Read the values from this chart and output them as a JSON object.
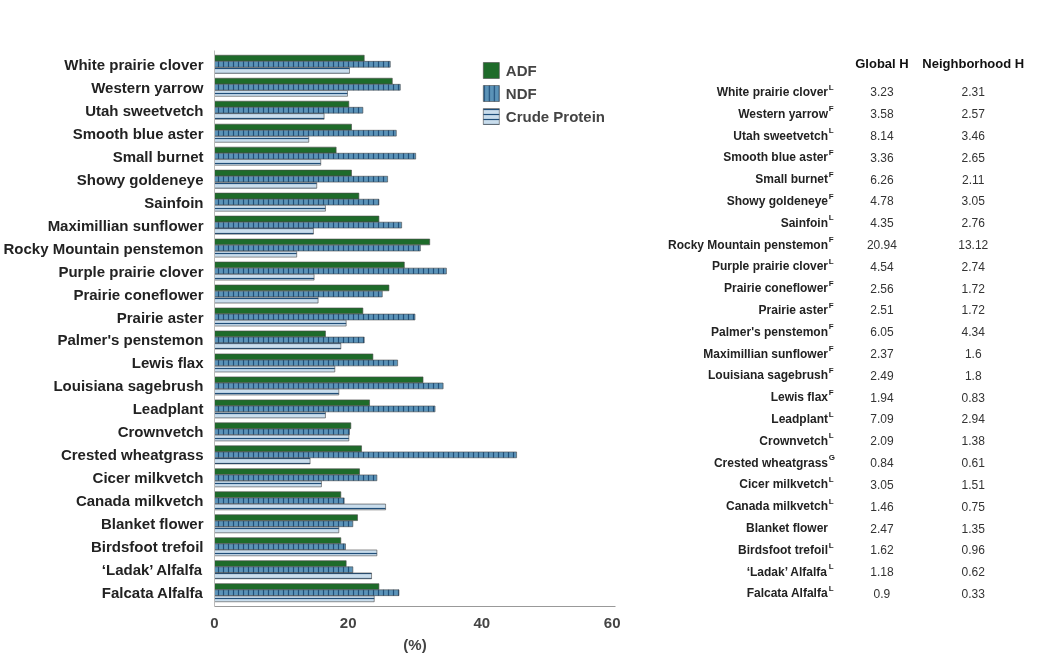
{
  "chart_data": [
    {
      "type": "bar",
      "orientation": "horizontal",
      "xlabel": "(%)",
      "xlim": [
        0,
        60
      ],
      "xticks": [
        0,
        20,
        40,
        60
      ],
      "grid": false,
      "legend": "top right",
      "categories": [
        "White prairie clover",
        "Western yarrow",
        "Utah sweetvetch",
        "Smooth blue aster",
        "Small burnet",
        "Showy goldeneye",
        "Sainfoin",
        "Maximillian sunflower",
        "Rocky Mountain penstemon",
        "Purple prairie clover",
        "Prairie coneflower",
        "Prairie aster",
        "Palmer's penstemon",
        "Lewis flax",
        "Louisiana sagebrush",
        "Leadplant",
        "Crownvetch",
        "Crested wheatgrass",
        "Cicer milkvetch",
        "Canada milkvetch",
        "Blanket flower",
        "Birdsfoot trefoil",
        "‘Ladak’ Alfalfa",
        "Falcata Alfalfa"
      ],
      "series": [
        {
          "name": "ADF",
          "color": "#1e6b2a",
          "values": [
            22.4,
            26.6,
            20.1,
            20.5,
            18.2,
            20.5,
            21.6,
            24.6,
            32.2,
            28.4,
            26.1,
            22.2,
            16.6,
            23.7,
            31.2,
            23.2,
            20.4,
            22.0,
            21.7,
            18.9,
            21.4,
            18.9,
            19.7,
            24.6
          ]
        },
        {
          "name": "NDF",
          "color": "#5b93b8",
          "values": [
            26.3,
            27.8,
            22.2,
            27.2,
            30.1,
            25.9,
            24.6,
            28.0,
            30.8,
            34.7,
            25.1,
            30.0,
            22.4,
            27.4,
            34.2,
            33.0,
            20.2,
            45.2,
            24.3,
            19.4,
            20.7,
            19.6,
            20.7,
            27.6
          ]
        },
        {
          "name": "Crude Protein",
          "color": "#c9ddec",
          "values": [
            20.2,
            19.9,
            16.4,
            14.1,
            15.9,
            15.3,
            16.6,
            14.8,
            12.3,
            14.9,
            15.5,
            19.7,
            18.9,
            18.0,
            18.6,
            16.6,
            20.1,
            14.3,
            16.0,
            25.6,
            18.6,
            24.3,
            23.5,
            23.9
          ]
        }
      ]
    },
    {
      "type": "other",
      "data_labels": true,
      "categories": [
        "White prairie clover$^{L}$",
        "Western yarrow$^{F}$",
        "Utah sweetvetch$^{L}$",
        "Smooth blue aster$^{F}$",
        "Small burnet$^{F}$",
        "Showy goldeneye$^{F}$",
        "Sainfoin$^{L}$",
        "Rocky Mountain penstemon$^{F}$",
        "Purple prairie clover$^{L}$",
        "Prairie coneflower$^{F}$",
        "Prairie aster$^{F}$",
        "Palmer's penstemon$^{F}$",
        "Maximillian sunflower$^{F}$",
        "Louisiana sagebrush$^{F}$",
        "Lewis flax$^{F}$",
        "Leadplant$^{L}$",
        "Crownvetch$^{L}$",
        "Crested wheatgrass$^{G}$",
        "Cicer milkvetch$^{L}$",
        "Canada milkvetch$^{L}$",
        "Blanket flower",
        "Birdsfoot trefoil$^{L}$",
        "‘Ladak’ Alfalfa$^{L}$",
        "Falcata Alfalfa$^{L}$"
      ],
      "series": [
        {
          "name": "Global H",
          "values": [
            3.23,
            3.58,
            8.14,
            3.36,
            6.26,
            4.78,
            4.35,
            20.94,
            4.54,
            2.56,
            2.51,
            6.05,
            2.37,
            2.49,
            1.94,
            7.09,
            2.09,
            0.84,
            3.05,
            1.46,
            2.47,
            1.62,
            1.18,
            0.9
          ]
        },
        {
          "name": "Neighborhood H",
          "values": [
            2.31,
            2.57,
            3.46,
            2.65,
            2.11,
            3.05,
            2.76,
            13.12,
            2.74,
            1.72,
            1.72,
            4.34,
            1.6,
            1.8,
            0.83,
            2.94,
            1.38,
            0.61,
            1.51,
            0.75,
            1.35,
            0.96,
            0.62,
            0.33
          ]
        }
      ]
    }
  ]
}
